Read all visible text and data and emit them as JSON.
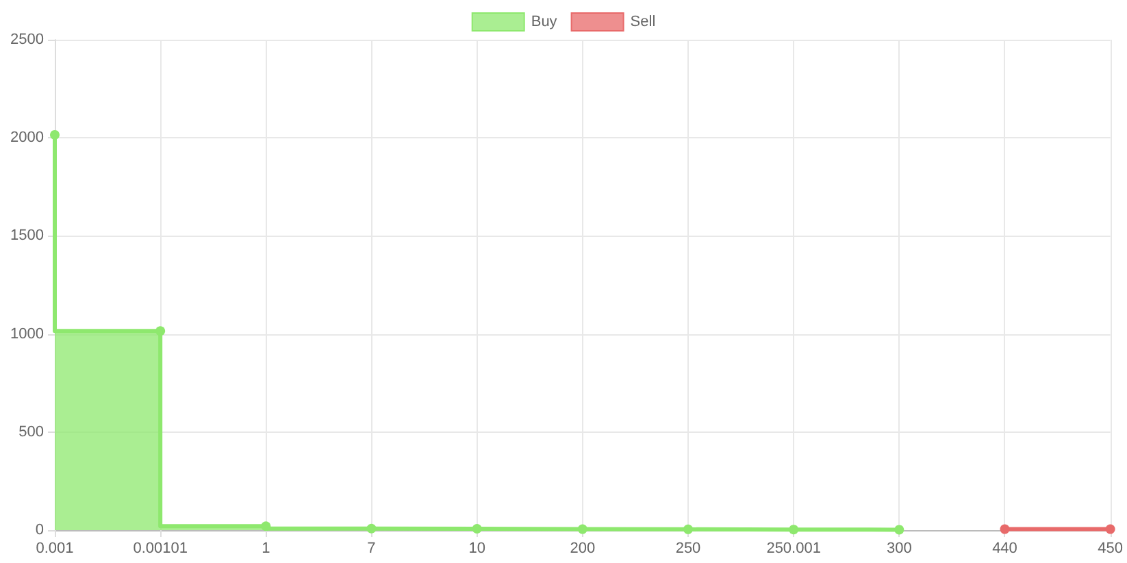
{
  "chart_data": {
    "type": "step",
    "categories": [
      "0.001",
      "0.00101",
      "1",
      "7",
      "10",
      "200",
      "250",
      "250.001",
      "300",
      "440",
      "450"
    ],
    "series": [
      {
        "name": "Buy",
        "color": "#8ee86e",
        "values": [
          2015,
          1015,
          20,
          8,
          7,
          5,
          4,
          3,
          2,
          null,
          null
        ]
      },
      {
        "name": "Sell",
        "color": "#e86a6a",
        "values": [
          null,
          null,
          null,
          null,
          null,
          null,
          null,
          null,
          null,
          5,
          5
        ]
      }
    ],
    "ylim": [
      0,
      2500
    ],
    "yticks": [
      0,
      500,
      1000,
      1500,
      2000,
      2500
    ],
    "grid": true,
    "legend": "top",
    "marker": "circle"
  }
}
